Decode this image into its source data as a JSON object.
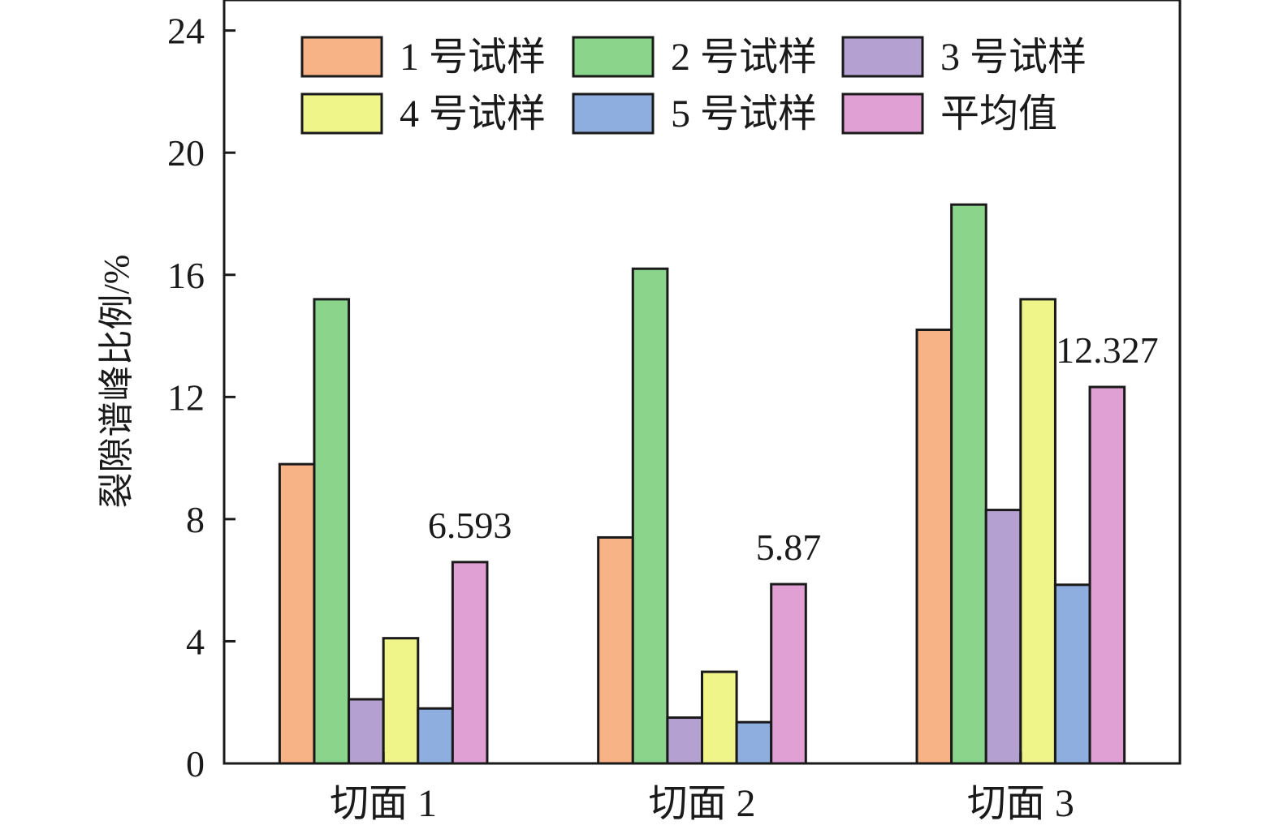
{
  "chart_data": {
    "type": "bar",
    "categories": [
      "切面 1",
      "切面 2",
      "切面 3"
    ],
    "series": [
      {
        "name": "1 号试样",
        "color": "#F7B385",
        "values": [
          9.8,
          7.4,
          14.2
        ]
      },
      {
        "name": "2 号试样",
        "color": "#8BD48C",
        "values": [
          15.2,
          16.2,
          18.3
        ]
      },
      {
        "name": "3 号试样",
        "color": "#B5A0D2",
        "values": [
          2.1,
          1.5,
          8.3
        ]
      },
      {
        "name": "4 号试样",
        "color": "#F0F58A",
        "values": [
          4.1,
          3.0,
          15.2
        ]
      },
      {
        "name": "5 号试样",
        "color": "#8FAEE0",
        "values": [
          1.8,
          1.35,
          5.85
        ]
      },
      {
        "name": "平均值",
        "color": "#E0A0D4",
        "values": [
          6.593,
          5.87,
          12.327
        ]
      }
    ],
    "data_labels": [
      "6.593",
      "5.87",
      "12.327"
    ],
    "xlabel": "",
    "ylabel": "裂隙谱峰比例/%",
    "ylim": [
      0,
      25
    ],
    "yticks": [
      "0",
      "4",
      "8",
      "12",
      "16",
      "20",
      "24"
    ],
    "legend_position": "top",
    "grid": false
  }
}
